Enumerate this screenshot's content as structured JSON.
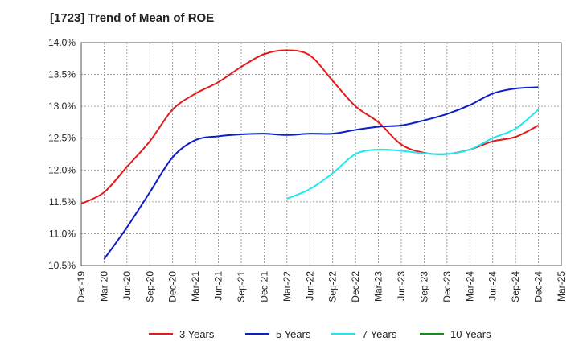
{
  "chart_data": {
    "type": "line",
    "title": "[1723]  Trend of Mean of ROE",
    "xlabel": "",
    "ylabel": "",
    "x_ticks": [
      "Dec-19",
      "Mar-20",
      "Jun-20",
      "Sep-20",
      "Dec-20",
      "Mar-21",
      "Jun-21",
      "Sep-21",
      "Dec-21",
      "Mar-22",
      "Jun-22",
      "Sep-22",
      "Dec-22",
      "Mar-23",
      "Jun-23",
      "Sep-23",
      "Dec-23",
      "Mar-24",
      "Jun-24",
      "Sep-24",
      "Dec-24",
      "Mar-25"
    ],
    "y_ticks": [
      "10.5%",
      "11.0%",
      "11.5%",
      "12.0%",
      "12.5%",
      "13.0%",
      "13.5%",
      "14.0%"
    ],
    "ylim": [
      10.5,
      14.0
    ],
    "grid": true,
    "legend_position": "bottom",
    "series": [
      {
        "name": "3 Years",
        "color": "#e31a1c",
        "points": [
          [
            "Dec-19",
            11.47
          ],
          [
            "Mar-20",
            11.65
          ],
          [
            "Jun-20",
            12.05
          ],
          [
            "Sep-20",
            12.45
          ],
          [
            "Dec-20",
            12.95
          ],
          [
            "Mar-21",
            13.2
          ],
          [
            "Jun-21",
            13.38
          ],
          [
            "Sep-21",
            13.62
          ],
          [
            "Dec-21",
            13.82
          ],
          [
            "Mar-22",
            13.88
          ],
          [
            "Jun-22",
            13.8
          ],
          [
            "Sep-22",
            13.4
          ],
          [
            "Dec-22",
            13.0
          ],
          [
            "Mar-23",
            12.75
          ],
          [
            "Jun-23",
            12.4
          ],
          [
            "Sep-23",
            12.27
          ],
          [
            "Dec-23",
            12.25
          ],
          [
            "Mar-24",
            12.32
          ],
          [
            "Jun-24",
            12.45
          ],
          [
            "Sep-24",
            12.52
          ],
          [
            "Dec-24",
            12.7
          ]
        ]
      },
      {
        "name": "5 Years",
        "color": "#0a1fc4",
        "points": [
          [
            "Mar-20",
            10.6
          ],
          [
            "Jun-20",
            11.1
          ],
          [
            "Sep-20",
            11.65
          ],
          [
            "Dec-20",
            12.2
          ],
          [
            "Mar-21",
            12.47
          ],
          [
            "Jun-21",
            12.53
          ],
          [
            "Sep-21",
            12.56
          ],
          [
            "Dec-21",
            12.57
          ],
          [
            "Mar-22",
            12.55
          ],
          [
            "Jun-22",
            12.57
          ],
          [
            "Sep-22",
            12.57
          ],
          [
            "Dec-22",
            12.63
          ],
          [
            "Mar-23",
            12.68
          ],
          [
            "Jun-23",
            12.7
          ],
          [
            "Sep-23",
            12.78
          ],
          [
            "Dec-23",
            12.88
          ],
          [
            "Mar-24",
            13.02
          ],
          [
            "Jun-24",
            13.2
          ],
          [
            "Sep-24",
            13.28
          ],
          [
            "Dec-24",
            13.3
          ]
        ]
      },
      {
        "name": "7 Years",
        "color": "#1ee8ee",
        "points": [
          [
            "Mar-22",
            11.55
          ],
          [
            "Jun-22",
            11.7
          ],
          [
            "Sep-22",
            11.95
          ],
          [
            "Dec-22",
            12.25
          ],
          [
            "Mar-23",
            12.32
          ],
          [
            "Jun-23",
            12.3
          ],
          [
            "Sep-23",
            12.26
          ],
          [
            "Dec-23",
            12.25
          ],
          [
            "Mar-24",
            12.32
          ],
          [
            "Jun-24",
            12.5
          ],
          [
            "Sep-24",
            12.65
          ],
          [
            "Dec-24",
            12.95
          ]
        ]
      },
      {
        "name": "10 Years",
        "color": "#1a8c1a",
        "points": []
      }
    ]
  }
}
